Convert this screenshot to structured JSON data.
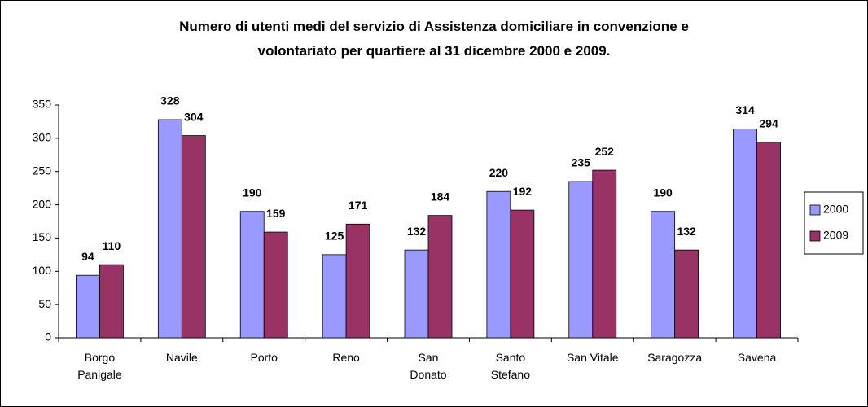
{
  "chart_data": {
    "type": "bar",
    "title": "Numero di utenti medi del servizio di Assistenza domiciliare in convenzione e\nvolontariato per quartiere al 31 dicembre 2000 e 2009.",
    "categories": [
      "Borgo\nPanigale",
      "Navile",
      "Porto",
      "Reno",
      "San\nDonato",
      "Santo\nStefano",
      "San Vitale",
      "Saragozza",
      "Savena"
    ],
    "series": [
      {
        "name": "2000",
        "color": "#9999ff",
        "values": [
          94,
          328,
          190,
          125,
          132,
          220,
          235,
          190,
          314
        ]
      },
      {
        "name": "2009",
        "color": "#993366",
        "values": [
          110,
          304,
          159,
          171,
          184,
          192,
          252,
          132,
          294
        ]
      }
    ],
    "ylim": [
      0,
      350
    ],
    "yticks": [
      0,
      50,
      100,
      150,
      200,
      250,
      300,
      350
    ],
    "grid": false,
    "legend": "right"
  }
}
